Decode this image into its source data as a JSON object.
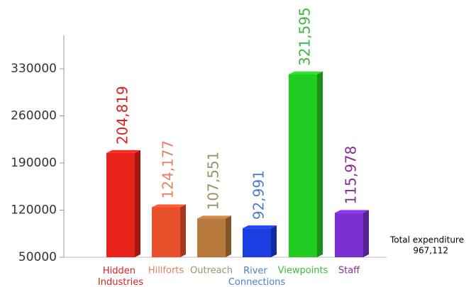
{
  "chart_data": {
    "type": "bar3d",
    "categories": [
      "Hidden Industries",
      "Hillforts",
      "Outreach",
      "River Connections",
      "Viewpoints",
      "Staff"
    ],
    "values": [
      204819,
      124177,
      107551,
      92991,
      321595,
      115978
    ],
    "value_labels": [
      "204,819",
      "124,177",
      "107,551",
      "92,991",
      "321,595",
      "115,978"
    ],
    "colors": [
      "#e8241c",
      "#e8502c",
      "#b87a3c",
      "#1a3ee0",
      "#22cc22",
      "#7a30d0"
    ],
    "label_colors": [
      "#e02020",
      "#e8805a",
      "#a09068",
      "#4a80cc",
      "#3cb83c",
      "#8a2a9a"
    ],
    "ylim": [
      50000,
      380000
    ],
    "yticks": [
      50000,
      120000,
      190000,
      260000,
      330000
    ],
    "annotation": [
      "Total expenditure",
      "967,112"
    ]
  }
}
